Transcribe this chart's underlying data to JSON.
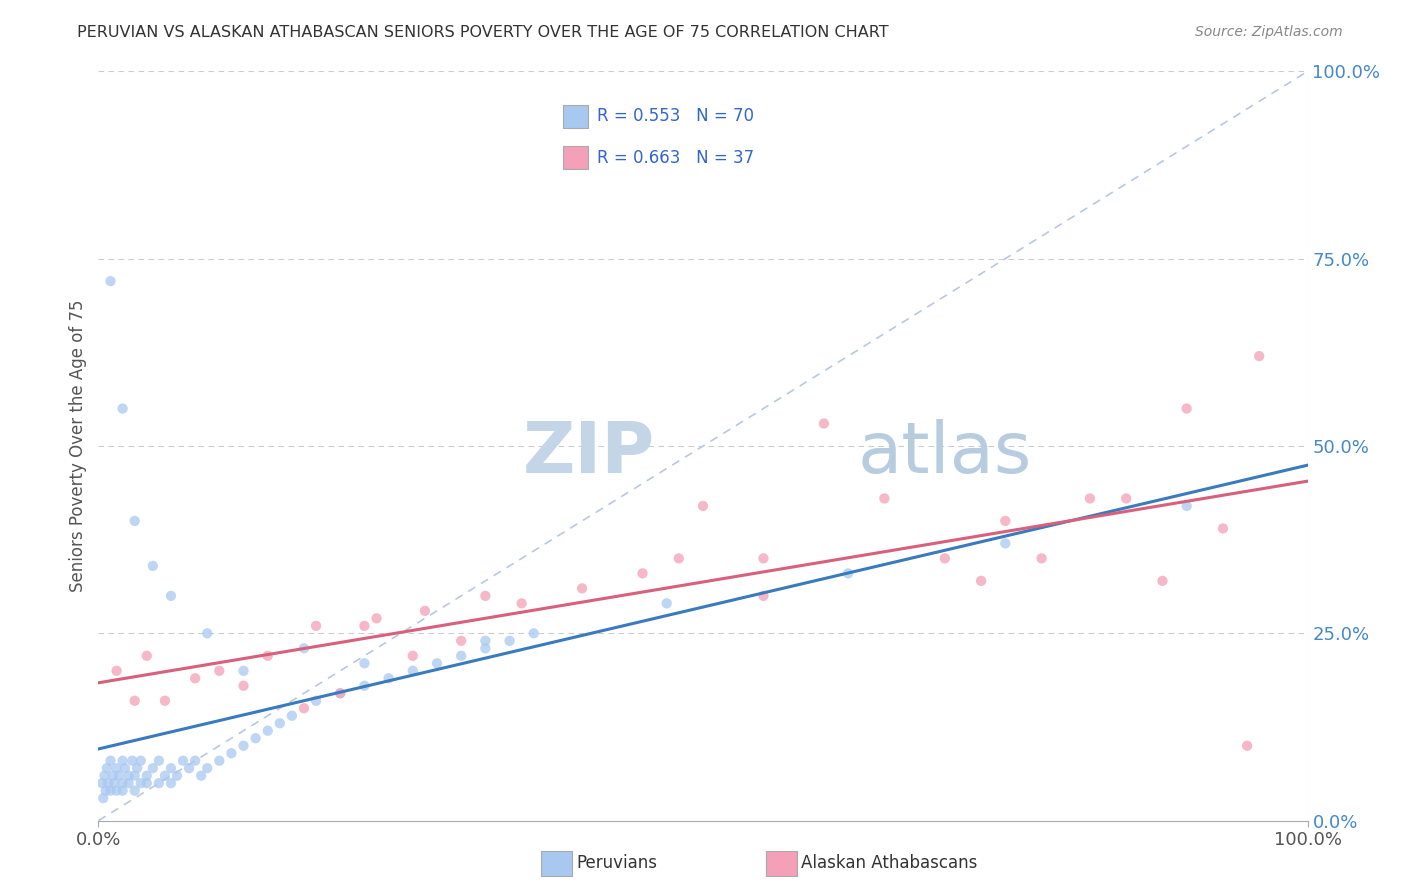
{
  "title": "PERUVIAN VS ALASKAN ATHABASCAN SENIORS POVERTY OVER THE AGE OF 75 CORRELATION CHART",
  "source": "Source: ZipAtlas.com",
  "ylabel": "Seniors Poverty Over the Age of 75",
  "legend_label1": "Peruvians",
  "legend_label2": "Alaskan Athabascans",
  "r1": "0.553",
  "n1": "70",
  "r2": "0.663",
  "n2": "37",
  "color1": "#a8c8f0",
  "color1_edge": "#7aaad4",
  "color2": "#f4a0b8",
  "color2_edge": "#d87090",
  "trendline1_color": "#3a7abf",
  "trendline2_color": "#d9607a",
  "diagonal_color": "#b8c8e0",
  "watermark_zip_color": "#c5d5e8",
  "watermark_atlas_color": "#b8cce0",
  "right_ytick_labels": [
    "0.0%",
    "25.0%",
    "50.0%",
    "75.0%",
    "100.0%"
  ],
  "right_ytick_values": [
    0,
    25,
    50,
    75,
    100
  ],
  "peruvian_x": [
    0.3,
    0.4,
    0.5,
    0.6,
    0.7,
    0.8,
    1.0,
    1.0,
    1.2,
    1.3,
    1.5,
    1.5,
    1.7,
    2.0,
    2.0,
    2.0,
    2.2,
    2.5,
    2.5,
    2.8,
    3.0,
    3.0,
    3.2,
    3.5,
    3.5,
    4.0,
    4.0,
    4.5,
    5.0,
    5.0,
    5.5,
    6.0,
    6.0,
    6.5,
    7.0,
    7.5,
    8.0,
    8.5,
    9.0,
    10.0,
    11.0,
    12.0,
    13.0,
    14.0,
    15.0,
    16.0,
    18.0,
    20.0,
    22.0,
    24.0,
    26.0,
    28.0,
    30.0,
    32.0,
    34.0,
    36.0,
    1.0,
    2.0,
    3.0,
    4.5,
    6.0,
    9.0,
    12.0,
    17.0,
    22.0,
    32.0,
    47.0,
    62.0,
    75.0,
    90.0
  ],
  "peruvian_y": [
    5,
    3,
    6,
    4,
    7,
    5,
    8,
    4,
    6,
    5,
    7,
    4,
    6,
    5,
    8,
    4,
    7,
    6,
    5,
    8,
    6,
    4,
    7,
    5,
    8,
    6,
    5,
    7,
    8,
    5,
    6,
    7,
    5,
    6,
    8,
    7,
    8,
    6,
    7,
    8,
    9,
    10,
    11,
    12,
    13,
    14,
    16,
    17,
    18,
    19,
    20,
    21,
    22,
    23,
    24,
    25,
    72,
    55,
    40,
    34,
    30,
    25,
    20,
    23,
    21,
    24,
    29,
    33,
    37,
    42
  ],
  "athabascan_x": [
    1.5,
    3.0,
    4.0,
    5.5,
    8.0,
    10.0,
    12.0,
    14.0,
    17.0,
    20.0,
    23.0,
    26.0,
    30.0,
    35.0,
    40.0,
    45.0,
    50.0,
    55.0,
    60.0,
    65.0,
    70.0,
    73.0,
    75.0,
    78.0,
    82.0,
    85.0,
    88.0,
    90.0,
    93.0,
    96.0,
    18.0,
    22.0,
    27.0,
    32.0,
    48.0,
    55.0,
    95.0
  ],
  "athabascan_y": [
    20,
    16,
    22,
    16,
    19,
    20,
    18,
    22,
    15,
    17,
    27,
    22,
    24,
    29,
    31,
    33,
    42,
    35,
    53,
    43,
    35,
    32,
    40,
    35,
    43,
    43,
    32,
    55,
    39,
    62,
    26,
    26,
    28,
    30,
    35,
    30,
    10
  ]
}
